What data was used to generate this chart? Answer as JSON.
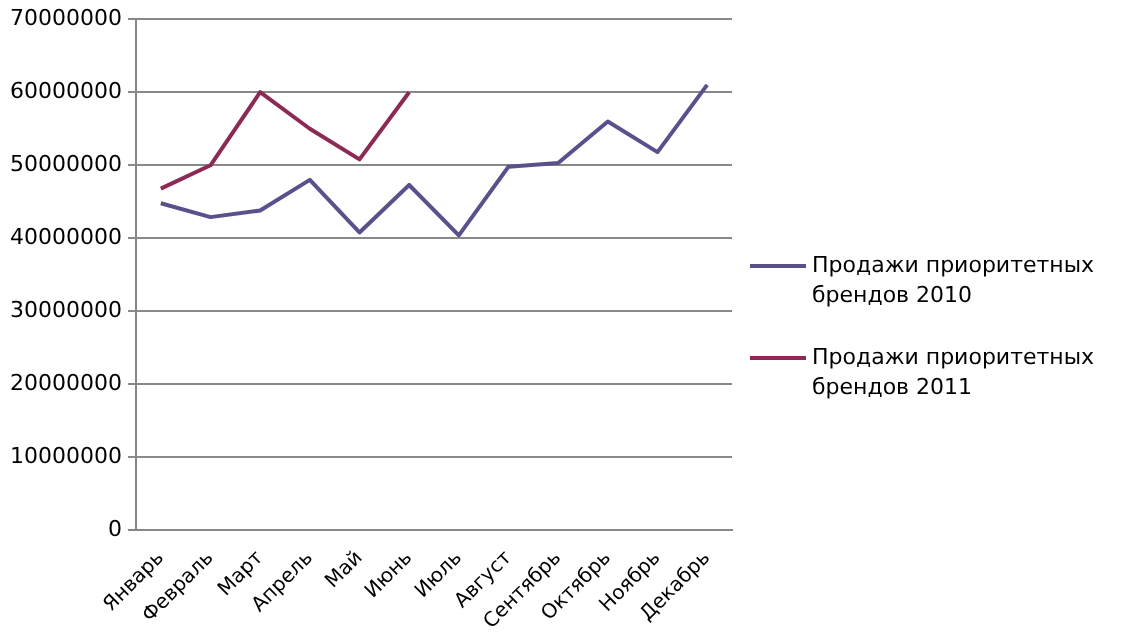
{
  "chart_data": {
    "type": "line",
    "categories": [
      "Январь",
      "Февраль",
      "Март",
      "Апрель",
      "Май",
      "Июнь",
      "Июль",
      "Август",
      "Сентябрь",
      "Октябрь",
      "Ноябрь",
      "Декабрь"
    ],
    "series": [
      {
        "name": "Продажи приоритетных брендов 2010",
        "color": "#5b4f8c",
        "values": [
          44800000,
          42900000,
          43800000,
          48000000,
          40800000,
          47300000,
          40400000,
          49800000,
          50300000,
          56000000,
          51800000,
          61000000
        ]
      },
      {
        "name": "Продажи приоритетных брендов 2011",
        "color": "#8c2a55",
        "values": [
          46800000,
          50000000,
          60000000,
          55000000,
          50800000,
          60000000,
          null,
          null,
          null,
          null,
          null,
          null
        ]
      }
    ],
    "ylim": [
      0,
      70000000
    ],
    "yticks": [
      0,
      10000000,
      20000000,
      30000000,
      40000000,
      50000000,
      60000000,
      70000000
    ],
    "grid": "y",
    "legend": "right",
    "marker": "none"
  }
}
